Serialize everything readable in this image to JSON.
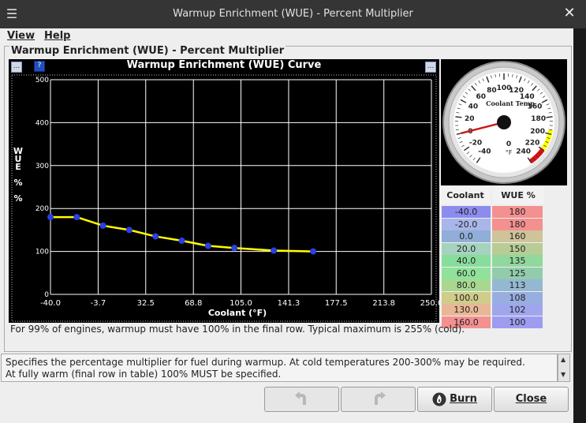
{
  "window": {
    "title": "Warmup Enrichment (WUE) - Percent Multiplier",
    "menu_icon": "hamburger-icon",
    "close_icon": "close-icon"
  },
  "menu": {
    "items": [
      "View",
      "Help"
    ]
  },
  "panel": {
    "title": "Warmup Enrichment (WUE) - Percent Multiplier"
  },
  "chart_data": {
    "type": "line",
    "title": "Warmup Enrichment (WUE) Curve",
    "xlabel": "Coolant (°F)",
    "ylabel": "WUE % %",
    "xlim": [
      -40.0,
      250.0
    ],
    "ylim": [
      0,
      500
    ],
    "x_ticks": [
      "-40.0",
      "-3.7",
      "32.5",
      "68.8",
      "105.0",
      "141.3",
      "177.5",
      "213.8",
      "250.0"
    ],
    "y_ticks": [
      "0",
      "100",
      "200",
      "300",
      "400",
      "500"
    ],
    "grid": true,
    "line_color": "#ffff00",
    "point_color": "#2b3fe8",
    "series": [
      {
        "x": [
          -40.0,
          -20.0,
          0.0,
          20.0,
          40.0,
          60.0,
          80.0,
          100.0,
          130.0,
          160.0
        ],
        "values": [
          180,
          180,
          160,
          150,
          135,
          125,
          113,
          108,
          102,
          100
        ]
      }
    ]
  },
  "gauge": {
    "title": "Coolant Temp",
    "unit": "°F",
    "center_value": "0",
    "labels": [
      "-40",
      "-20",
      "0",
      "20",
      "40",
      "60",
      "80",
      "100",
      "120",
      "140",
      "160",
      "180",
      "200",
      "220",
      "240"
    ],
    "needle_value": 0,
    "min": -40,
    "max": 240,
    "warn_color": "#ffff00",
    "danger_color": "#e01010"
  },
  "table": {
    "headers": [
      "Coolant",
      "WUE %"
    ],
    "rows": [
      {
        "coolant": "-40.0",
        "wue": "180",
        "c_color": "#8c8cee",
        "w_color": "#f49090"
      },
      {
        "coolant": "-20.0",
        "wue": "180",
        "c_color": "#a8b6ea",
        "w_color": "#f49090"
      },
      {
        "coolant": "0.0",
        "wue": "160",
        "c_color": "#90aed8",
        "w_color": "#cfc39a"
      },
      {
        "coolant": "20.0",
        "wue": "150",
        "c_color": "#a6d2c0",
        "w_color": "#b8cc96"
      },
      {
        "coolant": "40.0",
        "wue": "135",
        "c_color": "#88dc9c",
        "w_color": "#90d89c"
      },
      {
        "coolant": "60.0",
        "wue": "125",
        "c_color": "#90e29a",
        "w_color": "#92ccac"
      },
      {
        "coolant": "80.0",
        "wue": "113",
        "c_color": "#a8d890",
        "w_color": "#94b8d2"
      },
      {
        "coolant": "100.0",
        "wue": "108",
        "c_color": "#d0cc8a",
        "w_color": "#98aee0"
      },
      {
        "coolant": "130.0",
        "wue": "102",
        "c_color": "#e8b896",
        "w_color": "#a0a6ec"
      },
      {
        "coolant": "160.0",
        "wue": "100",
        "c_color": "#f49090",
        "w_color": "#9e9cf0"
      }
    ]
  },
  "footnote": "For 99% of engines, warmup must have 100% in the final row. Typical maximum is 255% (cold).",
  "description": {
    "line1": "Specifies the percentage multiplier for fuel during warmup. At cold temperatures 200-300% may be required.",
    "line2": "At fully warm (final row in table) 100% MUST be specified."
  },
  "buttons": {
    "undo_icon": "undo-icon",
    "redo_icon": "redo-icon",
    "burn": "Burn",
    "close": "Close",
    "burn_icon": "flame-icon"
  },
  "mini_buttons": {
    "left": "...",
    "help": "?",
    "right": "..."
  }
}
